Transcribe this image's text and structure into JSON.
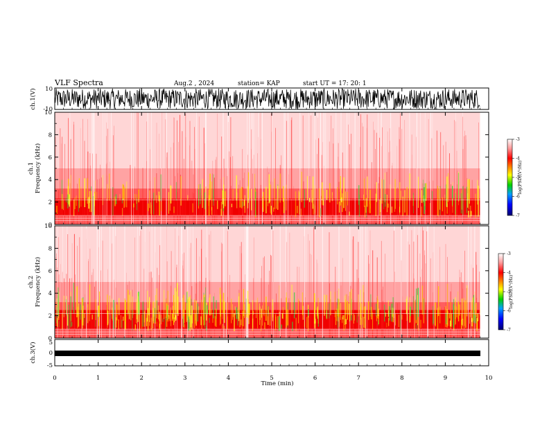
{
  "header": {
    "title": "VLF Spectra",
    "date": "Aug.2 , 2024",
    "station": "station= KAP",
    "start_ut": "start UT = 17: 20: 1"
  },
  "colors": {
    "background": "#ffffff",
    "axes": "#000000",
    "spectrogram_low": "#ff0000",
    "spectrogram_high": "#ffff00"
  },
  "chart_data": [
    {
      "type": "line",
      "name": "ch1-waveform",
      "ylabel": "ch.1(V)",
      "ylim": [
        -10,
        10
      ],
      "yticks": [
        "10",
        "-10"
      ],
      "xlim": [
        0,
        10
      ],
      "description_values": "dense noise waveform spanning roughly -10 to 10 V"
    },
    {
      "type": "heatmap",
      "name": "ch1-spectrogram",
      "ylabel": "ch.1\nFrequency (kHz)",
      "ylim": [
        0,
        10
      ],
      "yticks": [
        "0",
        "2",
        "4",
        "6",
        "8",
        "10"
      ],
      "xlim": [
        0,
        9.8
      ],
      "colorbar": {
        "label": "log(PSD)(V²/Hz)",
        "range": [
          -7,
          -3
        ],
        "ticks": [
          "-3",
          "-4",
          "-5",
          "-6",
          "-7"
        ]
      },
      "intense_band_kHz": [
        0.8,
        2.3
      ],
      "elevated_band_kHz": [
        0,
        5
      ]
    },
    {
      "type": "heatmap",
      "name": "ch2-spectrogram",
      "ylabel": "ch.2\nFrequency (kHz)",
      "ylim": [
        0,
        10
      ],
      "yticks": [
        "0",
        "2",
        "4",
        "6",
        "8",
        "10"
      ],
      "xlim": [
        0,
        9.8
      ],
      "colorbar": {
        "label": "log(PSD)(V²/Hz)",
        "range": [
          -7,
          -3
        ],
        "ticks": [
          "-3",
          "-4",
          "-5",
          "-6",
          "-7"
        ]
      },
      "intense_band_kHz": [
        0.8,
        2.5
      ],
      "elevated_band_kHz": [
        0,
        5
      ]
    },
    {
      "type": "line",
      "name": "ch3-waveform",
      "ylabel": "ch.3(V)",
      "ylim": [
        -5,
        5
      ],
      "yticks": [
        "5",
        "0",
        "-5"
      ],
      "xlim": [
        0,
        9.8
      ],
      "level_V": -1
    }
  ],
  "xaxis": {
    "label": "Time (min)",
    "range": [
      0,
      10
    ],
    "ticks": [
      "0",
      "1",
      "2",
      "3",
      "4",
      "5",
      "6",
      "7",
      "8",
      "9",
      "10"
    ]
  }
}
